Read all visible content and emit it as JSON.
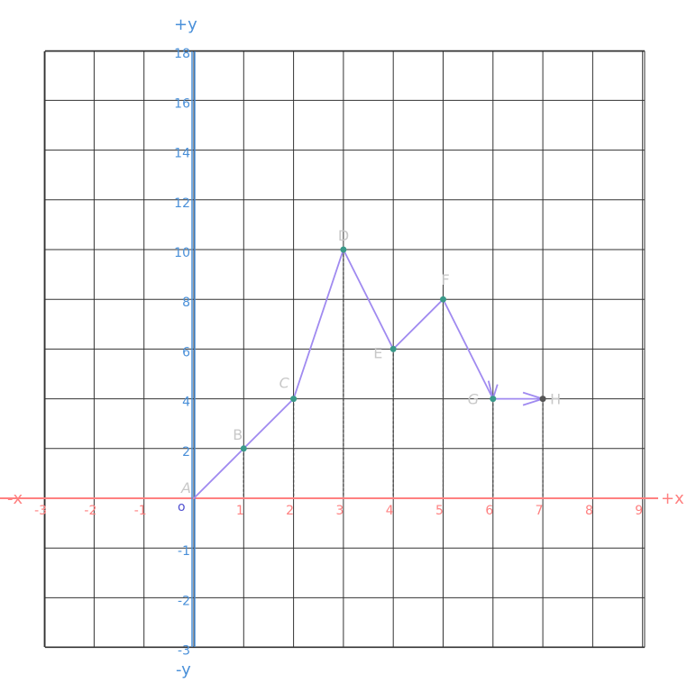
{
  "chart_data": {
    "type": "line",
    "axis_titles": {
      "x_pos": "+x",
      "x_neg": "-x",
      "y_pos": "+y",
      "y_neg": "-y"
    },
    "origin_label": "o",
    "xlim": [
      -3,
      9
    ],
    "ylim": [
      -3,
      18
    ],
    "x_ticks": [
      -3,
      -2,
      -1,
      1,
      2,
      3,
      4,
      5,
      6,
      7,
      8,
      9
    ],
    "y_ticks": [
      -3,
      -2,
      -1,
      2,
      4,
      6,
      8,
      10,
      12,
      14,
      16,
      18
    ],
    "x_tick_labels": [
      "-3",
      "-2",
      "-1",
      "1",
      "2",
      "3",
      "4",
      "5",
      "6",
      "7",
      "8",
      "9"
    ],
    "y_tick_labels": [
      "-3",
      "-2",
      "-1",
      "2",
      "4",
      "6",
      "8",
      "10",
      "12",
      "14",
      "16",
      "18"
    ],
    "points": [
      {
        "label": "A",
        "x": 0,
        "y": 0
      },
      {
        "label": "B",
        "x": 1,
        "y": 2
      },
      {
        "label": "C",
        "x": 2,
        "y": 4
      },
      {
        "label": "D",
        "x": 3,
        "y": 10
      },
      {
        "label": "E",
        "x": 4,
        "y": 6
      },
      {
        "label": "F",
        "x": 5,
        "y": 8
      },
      {
        "label": "G",
        "x": 6,
        "y": 4
      },
      {
        "label": "H",
        "x": 7,
        "y": 4
      }
    ],
    "grid": true,
    "colors": {
      "x_axis": "#ff8080",
      "y_axis": "#4a90d9",
      "grid": "#333333",
      "path": "#a08af0",
      "point": "#3a9a8a",
      "point_label": "#c8c8c8",
      "drop_line": "#444444"
    }
  }
}
